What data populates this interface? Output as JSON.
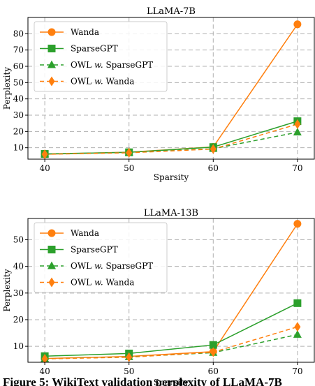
{
  "chart_data": [
    {
      "type": "line",
      "title": "LLaMA-7B",
      "xlabel": "Sparsity",
      "ylabel": "Perplexity",
      "x": [
        40,
        50,
        60,
        70
      ],
      "xlim": [
        38,
        72
      ],
      "ylim": [
        3,
        90
      ],
      "xticks": [
        40,
        50,
        60,
        70
      ],
      "yticks": [
        10,
        20,
        30,
        40,
        50,
        60,
        70,
        80
      ],
      "grid": true,
      "legend_position": "top-left",
      "series": [
        {
          "name": "Wanda",
          "values": [
            6.0,
            7.3,
            10.5,
            85.8
          ],
          "color": "#ff7f0e",
          "marker": "circle",
          "dashed": false
        },
        {
          "name": "SparseGPT",
          "values": [
            6.2,
            7.2,
            10.4,
            26.3
          ],
          "color": "#2ca02c",
          "marker": "square",
          "dashed": false
        },
        {
          "name": "OWL w. SparseGPT",
          "values": [
            6.1,
            7.0,
            9.4,
            19.5
          ],
          "color": "#2ca02c",
          "marker": "triangle",
          "dashed": true
        },
        {
          "name": "OWL w. Wanda",
          "values": [
            6.0,
            6.9,
            9.2,
            24.5
          ],
          "color": "#ff7f0e",
          "marker": "diamond",
          "dashed": true
        }
      ]
    },
    {
      "type": "line",
      "title": "LLaMA-13B",
      "xlabel": "Sparsity",
      "ylabel": "Perplexity",
      "x": [
        40,
        50,
        60,
        70
      ],
      "xlim": [
        38,
        72
      ],
      "ylim": [
        4,
        58
      ],
      "xticks": [
        40,
        50,
        60,
        70
      ],
      "yticks": [
        10,
        20,
        30,
        40,
        50
      ],
      "grid": true,
      "legend_position": "top-left",
      "series": [
        {
          "name": "Wanda",
          "values": [
            5.4,
            6.2,
            8.0,
            56.0
          ],
          "color": "#ff7f0e",
          "marker": "circle",
          "dashed": false
        },
        {
          "name": "SparseGPT",
          "values": [
            6.3,
            7.3,
            10.5,
            26.2
          ],
          "color": "#2ca02c",
          "marker": "square",
          "dashed": false
        },
        {
          "name": "OWL w. SparseGPT",
          "values": [
            5.3,
            6.0,
            7.6,
            14.4
          ],
          "color": "#2ca02c",
          "marker": "triangle",
          "dashed": true
        },
        {
          "name": "OWL w. Wanda",
          "values": [
            5.3,
            5.9,
            7.8,
            17.3
          ],
          "color": "#ff7f0e",
          "marker": "diamond",
          "dashed": true
        }
      ]
    }
  ],
  "caption": "Figure 5: WikiText validation perplexity of LLaMA-7B"
}
